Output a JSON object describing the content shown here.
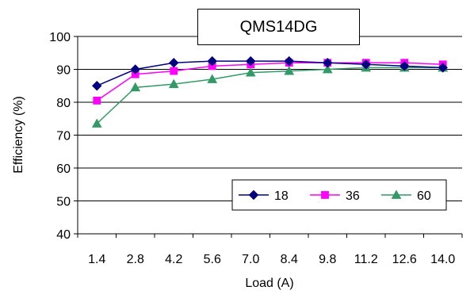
{
  "chart_data": {
    "type": "line",
    "title": "QMS14DG",
    "xlabel": "Load (A)",
    "ylabel": "Efficiency (%)",
    "categories": [
      "1.4",
      "2.8",
      "4.2",
      "5.6",
      "7.0",
      "8.4",
      "9.8",
      "11.2",
      "12.6",
      "14.0"
    ],
    "ylim": [
      40,
      100
    ],
    "yticks": [
      "40",
      "50",
      "60",
      "70",
      "80",
      "90",
      "100"
    ],
    "grid": true,
    "legend_position": "bottom-right",
    "series": [
      {
        "name": "18",
        "color": "#000080",
        "marker": "diamond",
        "values": [
          85,
          90,
          92,
          92.5,
          92.5,
          92.5,
          92,
          91.5,
          91,
          90.5
        ]
      },
      {
        "name": "36",
        "color": "#ff00ff",
        "marker": "square",
        "values": [
          80.5,
          88.5,
          89.5,
          91,
          91.5,
          92,
          92,
          92,
          92,
          91.5
        ]
      },
      {
        "name": "60",
        "color": "#339966",
        "marker": "triangle",
        "values": [
          73.5,
          84.5,
          85.5,
          87,
          89,
          89.5,
          90,
          90.5,
          90.5,
          90.5
        ]
      }
    ]
  }
}
